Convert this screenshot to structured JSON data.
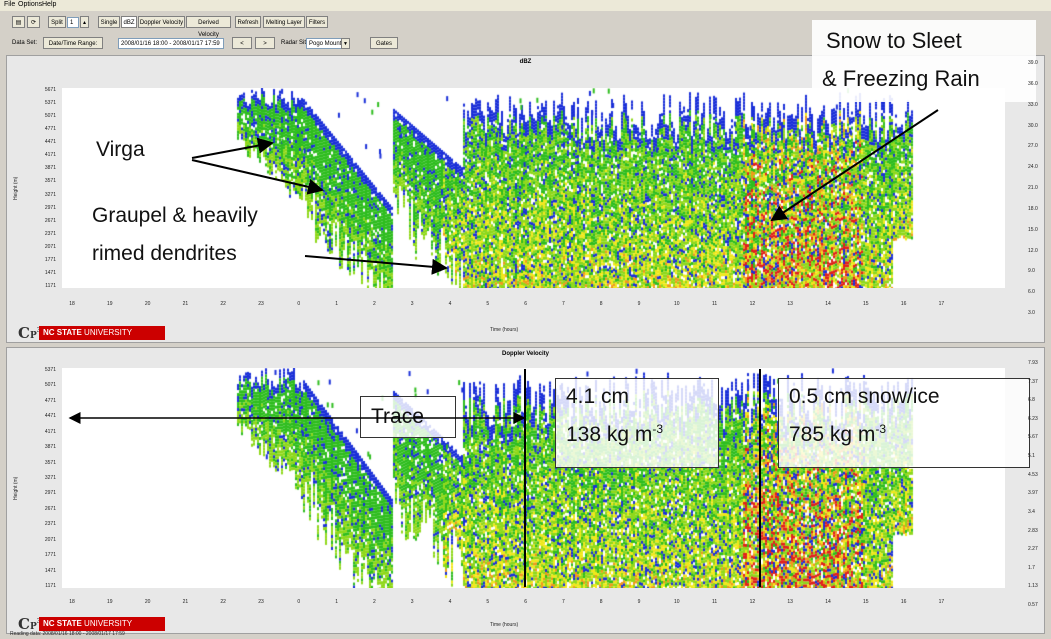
{
  "menu": [
    "File",
    "Options",
    "Help"
  ],
  "toolbar": {
    "split_label": "Split",
    "split_value": "1",
    "single": "Single",
    "dbz": "dBZ",
    "doppler": "Doppler Velocity",
    "derived": "Derived Velocity",
    "refresh": "Refresh",
    "melting": "Melting Layer",
    "filters": "Filters"
  },
  "dataset": {
    "label": "Data Set:",
    "range_button": "Date/Time Range:",
    "range_value": "2008/01/16 18:00 - 2008/01/17 17:59",
    "prev": "<",
    "next": ">",
    "site_label": "Radar Site:",
    "site_value": "Pogo Mountain",
    "gates": "Gates"
  },
  "panels": [
    {
      "title": "dBZ",
      "ylabel": "Height (m)",
      "xlabel": "Time (hours)",
      "yticks": [
        "5671",
        "5371",
        "5071",
        "4771",
        "4471",
        "4171",
        "3871",
        "3571",
        "3271",
        "2971",
        "2671",
        "2371",
        "2071",
        "1771",
        "1471",
        "1171"
      ],
      "rticks": [
        "39.0",
        "36.0",
        "33.0",
        "30.0",
        "27.0",
        "24.0",
        "21.0",
        "18.0",
        "15.0",
        "12.0",
        "9.0",
        "6.0",
        "3.0"
      ]
    },
    {
      "title": "Doppler Velocity",
      "ylabel": "Height (m)",
      "xlabel": "Time (hours)",
      "yticks": [
        "5371",
        "5071",
        "4771",
        "4471",
        "4171",
        "3871",
        "3571",
        "3271",
        "2971",
        "2671",
        "2371",
        "2071",
        "1771",
        "1471",
        "1171"
      ],
      "rticks": [
        "7.93",
        "7.37",
        "6.8",
        "6.23",
        "5.67",
        "5.1",
        "4.53",
        "3.97",
        "3.4",
        "2.83",
        "2.27",
        "1.7",
        "1.13",
        "0.57"
      ]
    }
  ],
  "xticks": [
    "18",
    "19",
    "20",
    "21",
    "22",
    "23",
    "0",
    "1",
    "2",
    "3",
    "4",
    "5",
    "6",
    "7",
    "8",
    "9",
    "10",
    "11",
    "12",
    "13",
    "14",
    "15",
    "16",
    "17"
  ],
  "logo": {
    "cp": "CP3",
    "ncsu_bold": "NC STATE",
    "ncsu_light": "UNIVERSITY"
  },
  "annotations": {
    "virga": "Virga",
    "graupel_1": "Graupel & heavily",
    "graupel_2": "rimed dendrites",
    "snow_1": "Snow to Sleet",
    "snow_2": "& Freezing Rain",
    "trace": "Trace",
    "mid_1": "4.1 cm",
    "mid_2": "138 kg m",
    "mid_exp": "-3",
    "right_1": "0.5 cm snow/ice",
    "right_2": "785 kg m",
    "right_exp": "-3"
  },
  "status": "Reading data: 2008/01/16 18:00 - 2008/01/17 17:59",
  "colors": {
    "blue": "#1a2fd8",
    "green": "#2ebd1e",
    "lime": "#8fd81a",
    "yellow": "#f0e81a",
    "orange": "#f09a1a",
    "red": "#e0201a",
    "brand_red": "#cc0000"
  }
}
